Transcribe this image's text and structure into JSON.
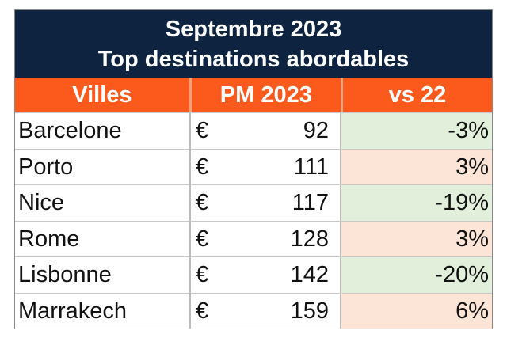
{
  "title_line1": "Septembre 2023",
  "title_line2": "Top destinations abordables",
  "headers": [
    "Villes",
    "PM 2023",
    "vs 22"
  ],
  "currency": "€",
  "rows": [
    {
      "city": "Barcelone",
      "pm": "92",
      "vs": "-3%"
    },
    {
      "city": "Porto",
      "pm": "111",
      "vs": "3%"
    },
    {
      "city": "Nice",
      "pm": "117",
      "vs": "-19%"
    },
    {
      "city": "Rome",
      "pm": "128",
      "vs": "3%"
    },
    {
      "city": "Lisbonne",
      "pm": "142",
      "vs": "-20%"
    },
    {
      "city": "Marrakech",
      "pm": "159",
      "vs": "6%"
    }
  ],
  "colors": {
    "title_bg": "#0d2340",
    "header_bg": "#fc5a1c",
    "decrease_bg": "#e2efda",
    "increase_bg": "#fce4d6"
  }
}
